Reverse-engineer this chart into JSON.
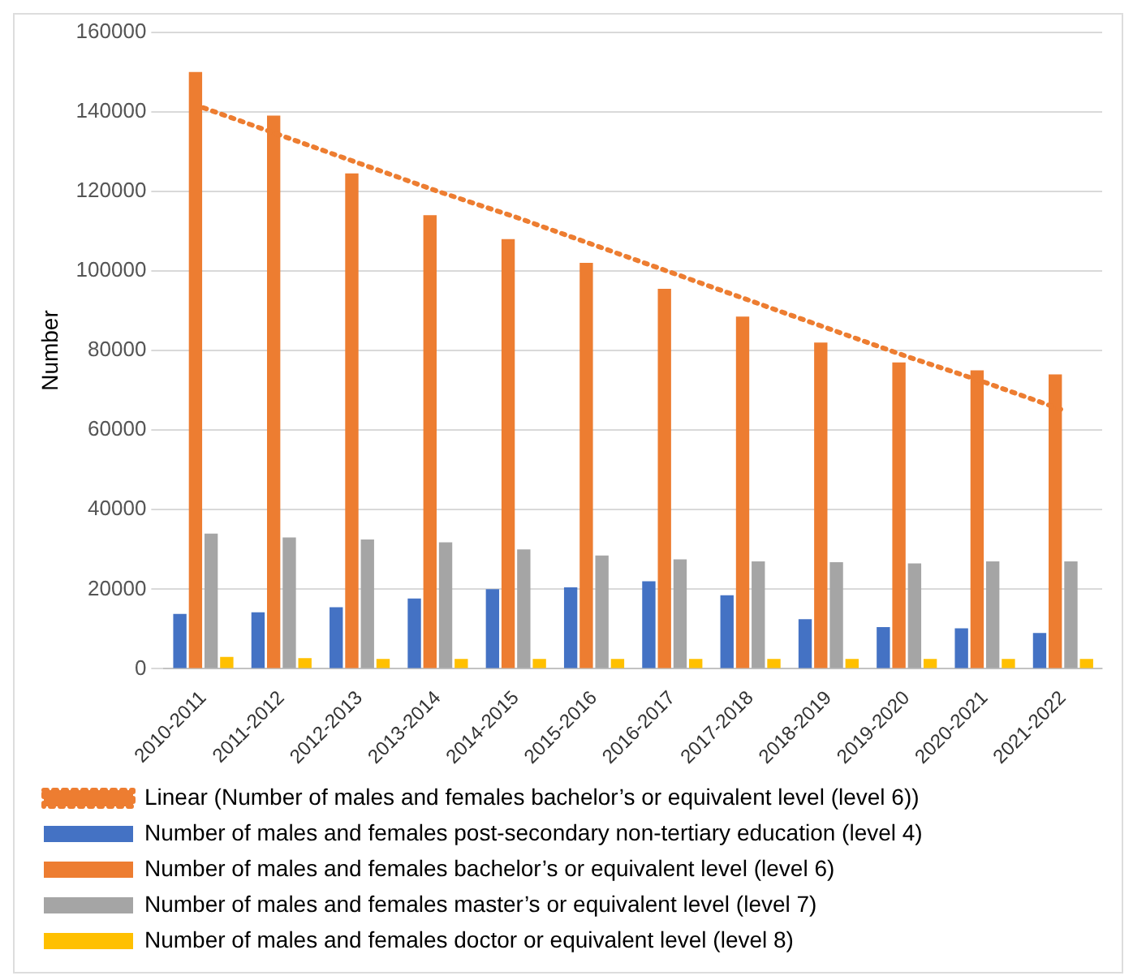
{
  "chart_data": {
    "type": "bar",
    "ylabel": "Number",
    "categories": [
      "2010-2011",
      "2011-2012",
      "2012-2013",
      "2013-2014",
      "2014-2015",
      "2015-2016",
      "2016-2017",
      "2017-2018",
      "2018-2019",
      "2019-2020",
      "2020-2021",
      "2021-2022"
    ],
    "series": [
      {
        "name": "Number of males and females post-secondary non-tertiary education (level 4)",
        "color": "#4472c4",
        "values": [
          13800,
          14200,
          15500,
          17700,
          20000,
          20500,
          22000,
          18500,
          12500,
          10500,
          10200,
          9000
        ]
      },
      {
        "name": "Number of males and females bachelor’s or equivalent level (level 6)",
        "color": "#ed7d31",
        "values": [
          150000,
          139000,
          124500,
          114000,
          108000,
          102000,
          95500,
          88500,
          82000,
          77000,
          75000,
          74000
        ]
      },
      {
        "name": "Number of males and females master’s or equivalent level (level 7)",
        "color": "#a5a5a5",
        "values": [
          34000,
          33000,
          32500,
          31800,
          30000,
          28500,
          27500,
          27000,
          26800,
          26500,
          27000,
          27000
        ]
      },
      {
        "name": "Number of males and females doctor or equivalent level (level 8)",
        "color": "#ffc000",
        "values": [
          3000,
          2700,
          2500,
          2500,
          2500,
          2500,
          2500,
          2500,
          2500,
          2500,
          2500,
          2500
        ]
      },
      {
        "name": "Linear (Number of males and females bachelor’s or equivalent level (level 6))",
        "type": "line",
        "color": "#ed7d31",
        "line_style": "dotted",
        "marker": "none",
        "values": [
          141000,
          134000,
          127000,
          120000,
          113500,
          106500,
          99500,
          92500,
          85500,
          78500,
          72000,
          65000
        ]
      }
    ],
    "ylim": [
      0,
      160000
    ],
    "yticks": [
      0,
      20000,
      40000,
      60000,
      80000,
      100000,
      120000,
      140000,
      160000
    ],
    "grid": "y",
    "legend": "bottom"
  }
}
